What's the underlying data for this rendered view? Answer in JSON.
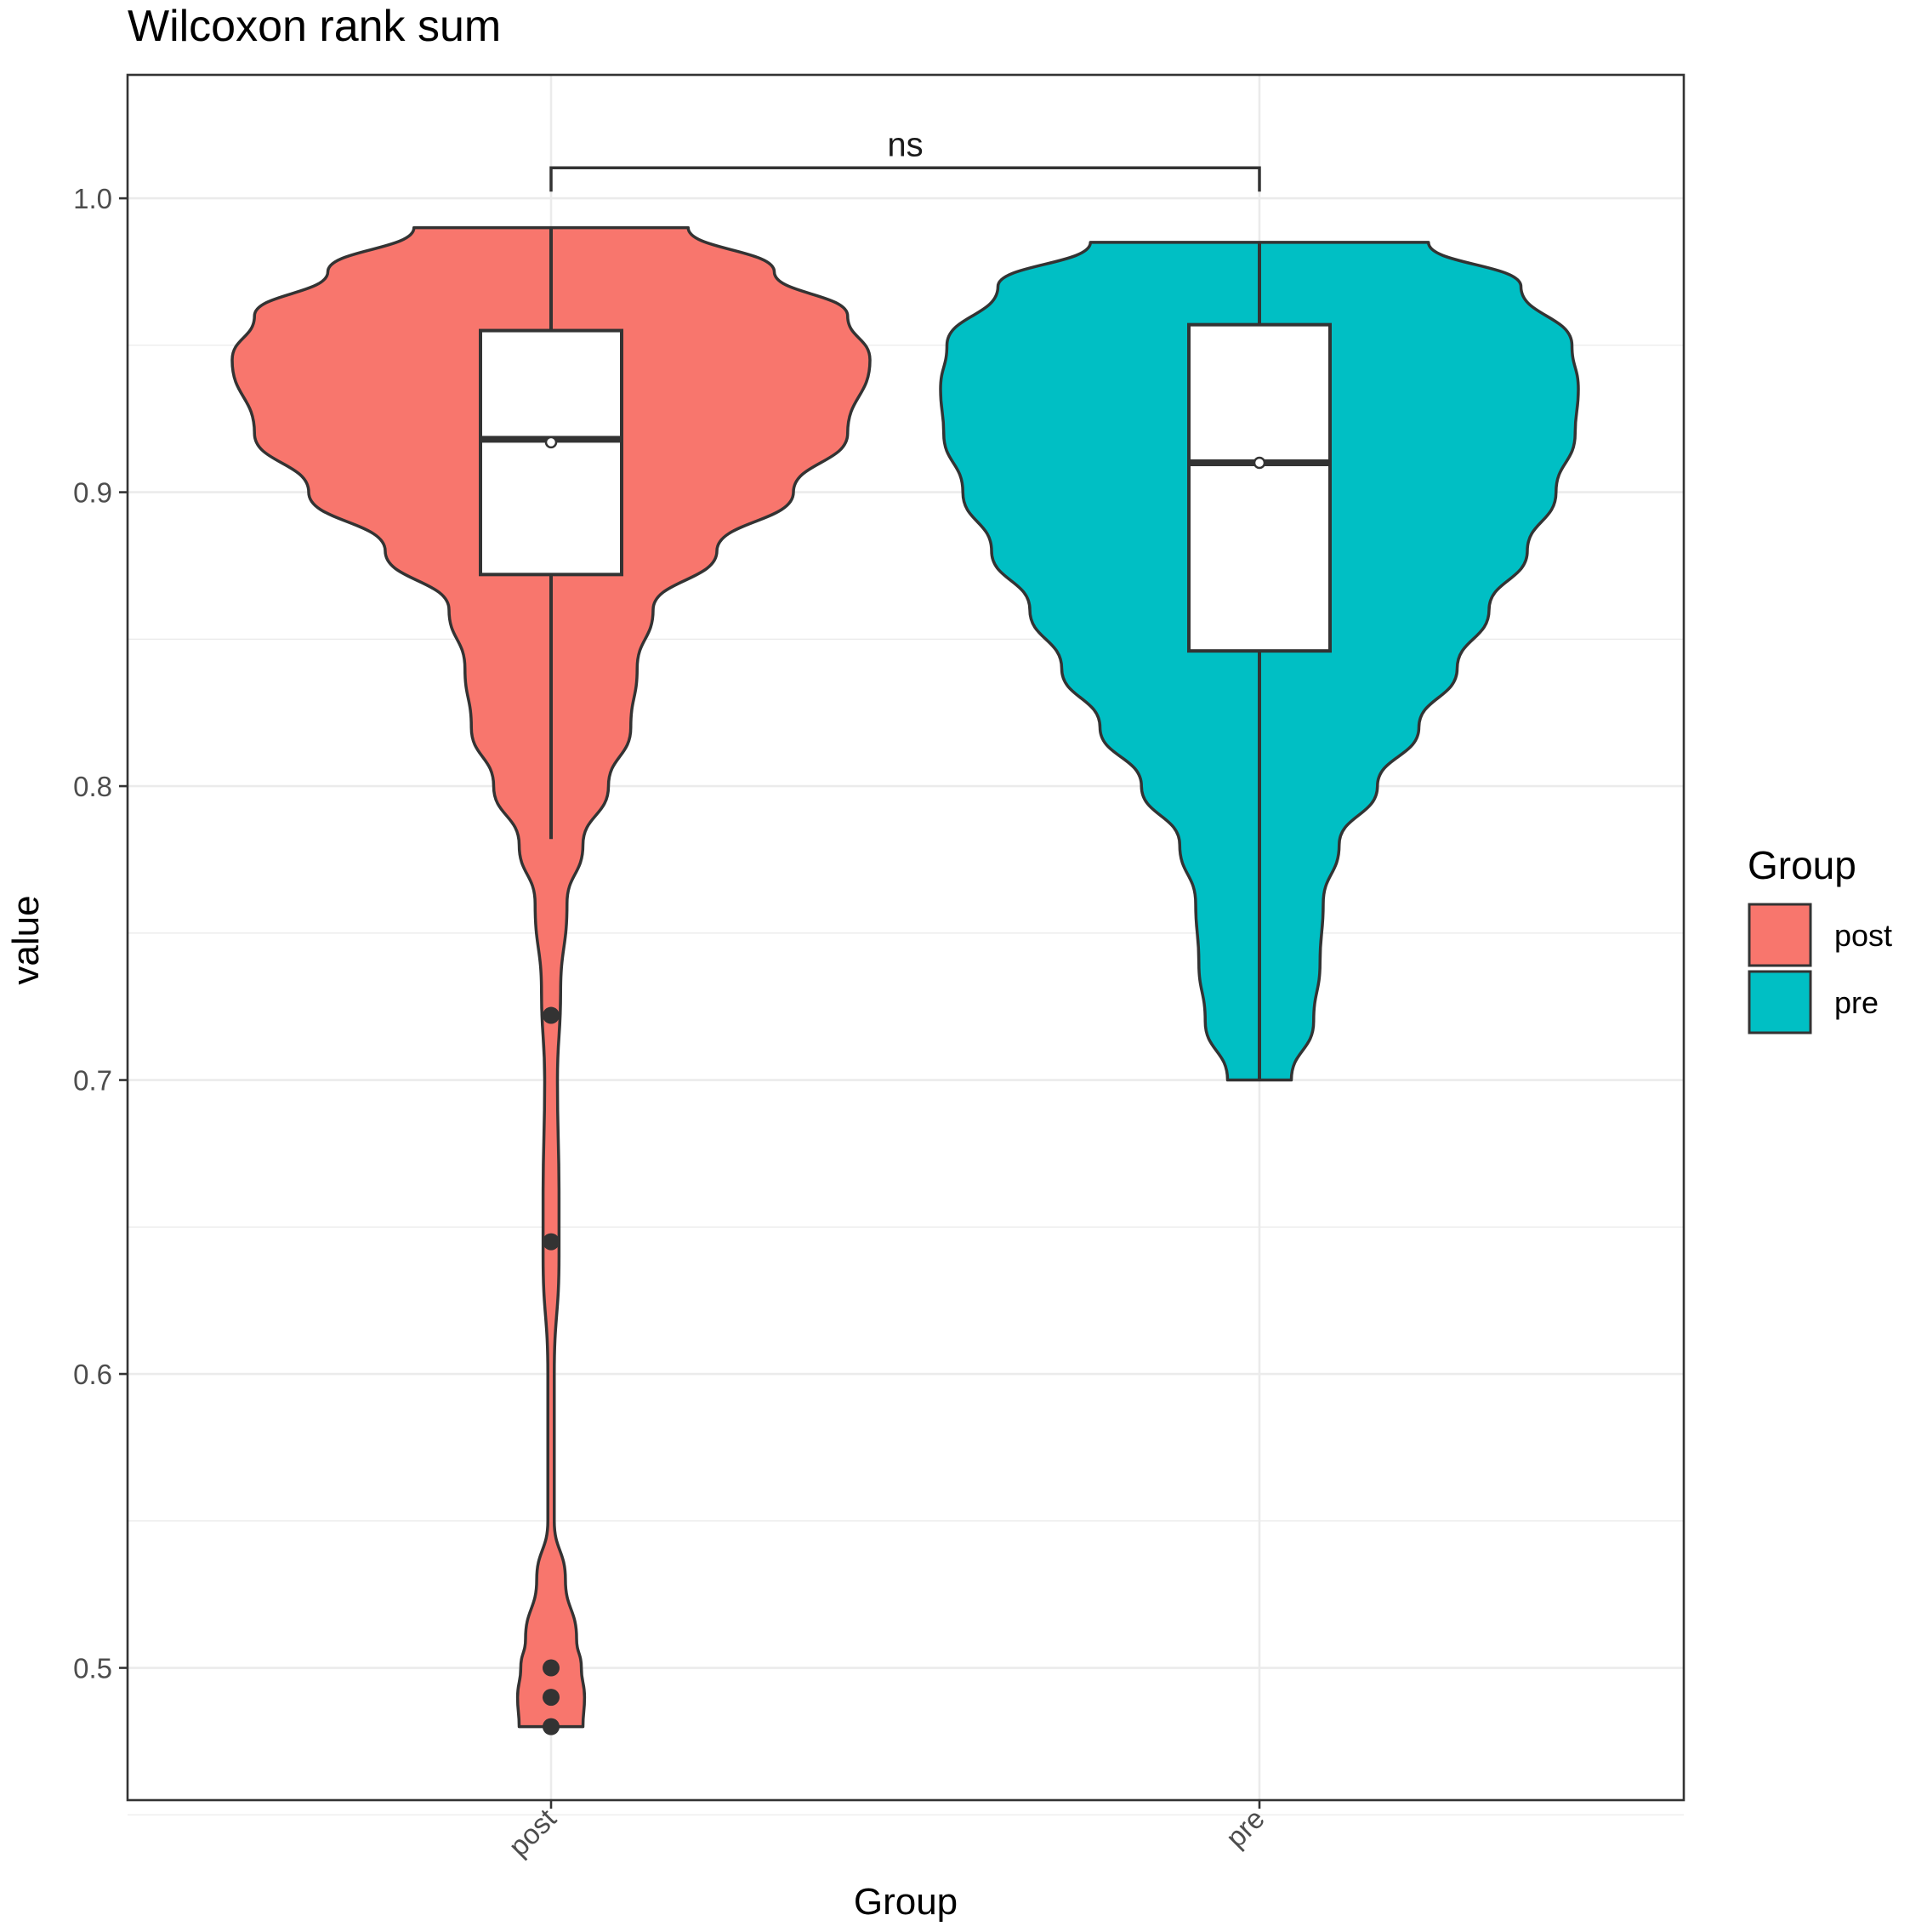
{
  "chart_data": {
    "type": "violin",
    "title": "Wilcoxon rank sum",
    "xlabel": "Group",
    "ylabel": "value",
    "ylim": [
      0.455,
      1.042
    ],
    "y_ticks": [
      0.5,
      0.6,
      0.7,
      0.8,
      0.9,
      1.0
    ],
    "y_tick_labels": [
      "0.5",
      "0.6",
      "0.7",
      "0.8",
      "0.9",
      "1.0"
    ],
    "categories": [
      "post",
      "pre"
    ],
    "grid": true,
    "legend": {
      "title": "Group",
      "placement": "right",
      "entries": [
        {
          "label": "post",
          "color": "#F8766D"
        },
        {
          "label": "pre",
          "color": "#00BFC4"
        }
      ]
    },
    "significance": {
      "label": "ns",
      "groups": [
        "post",
        "pre"
      ],
      "y": 1.015
    },
    "series": [
      {
        "name": "post",
        "color": "#F8766D",
        "violin_profile": [
          [
            0.48,
            0.1
          ],
          [
            0.49,
            0.105
          ],
          [
            0.5,
            0.095
          ],
          [
            0.51,
            0.08
          ],
          [
            0.53,
            0.045
          ],
          [
            0.55,
            0.01
          ],
          [
            0.6,
            0.01
          ],
          [
            0.64,
            0.025
          ],
          [
            0.66,
            0.025
          ],
          [
            0.7,
            0.02
          ],
          [
            0.73,
            0.03
          ],
          [
            0.76,
            0.05
          ],
          [
            0.78,
            0.1
          ],
          [
            0.8,
            0.18
          ],
          [
            0.82,
            0.25
          ],
          [
            0.84,
            0.27
          ],
          [
            0.86,
            0.32
          ],
          [
            0.88,
            0.52
          ],
          [
            0.9,
            0.76
          ],
          [
            0.92,
            0.93
          ],
          [
            0.945,
            1.0
          ],
          [
            0.96,
            0.93
          ],
          [
            0.975,
            0.7
          ],
          [
            0.99,
            0.43
          ]
        ],
        "box": {
          "whisker_low": 0.782,
          "q1": 0.872,
          "median": 0.918,
          "q3": 0.955,
          "whisker_high": 0.99
        },
        "mean": 0.917,
        "outliers": [
          0.722,
          0.645,
          0.5,
          0.49,
          0.48
        ]
      },
      {
        "name": "pre",
        "color": "#00BFC4",
        "violin_profile": [
          [
            0.7,
            0.1
          ],
          [
            0.72,
            0.17
          ],
          [
            0.74,
            0.19
          ],
          [
            0.76,
            0.2
          ],
          [
            0.78,
            0.25
          ],
          [
            0.8,
            0.37
          ],
          [
            0.82,
            0.5
          ],
          [
            0.84,
            0.62
          ],
          [
            0.86,
            0.72
          ],
          [
            0.88,
            0.84
          ],
          [
            0.9,
            0.93
          ],
          [
            0.92,
            0.99
          ],
          [
            0.935,
            1.0
          ],
          [
            0.95,
            0.98
          ],
          [
            0.97,
            0.82
          ],
          [
            0.985,
            0.53
          ]
        ],
        "box": {
          "whisker_low": 0.7,
          "q1": 0.846,
          "median": 0.91,
          "q3": 0.957,
          "whisker_high": 0.985
        },
        "mean": 0.91,
        "outliers": []
      }
    ]
  }
}
